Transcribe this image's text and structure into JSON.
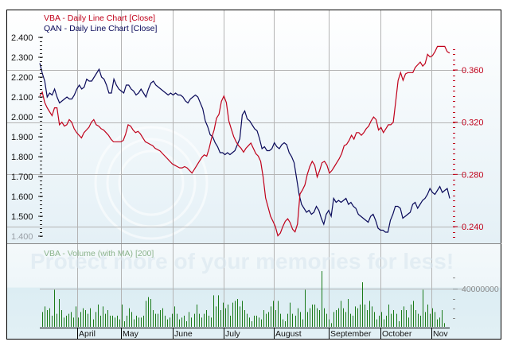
{
  "chart_data": [
    {
      "type": "line",
      "title": "Daily Line Chart [Close]",
      "legend": [
        {
          "name": "VBA - Daily Line Chart [Close]",
          "color": "#c0001a",
          "axis": "right"
        },
        {
          "name": "QAN - Daily Line Chart [Close]",
          "color": "#0a0a5a",
          "axis": "left"
        }
      ],
      "x_ticks": [
        "April",
        "May",
        "June",
        "July",
        "August",
        "September",
        "October",
        "Nov"
      ],
      "left_axis": {
        "ticks": [
          "2.400",
          "2.300",
          "2.200",
          "2.100",
          "2.000",
          "1.900",
          "1.800",
          "1.700",
          "1.600",
          "1.500",
          "1.400"
        ],
        "ylim": [
          1.4,
          2.4
        ]
      },
      "right_axis": {
        "ticks": [
          "0.360",
          "0.320",
          "0.280",
          "0.240"
        ],
        "ylim": [
          0.232,
          0.38
        ]
      },
      "grid": true,
      "series": [
        {
          "name": "QAN",
          "values": [
            2.27,
            2.22,
            2.18,
            2.1,
            2.12,
            2.11,
            2.14,
            2.1,
            2.07,
            2.08,
            2.09,
            2.1,
            2.09,
            2.09,
            2.11,
            2.14,
            2.16,
            2.14,
            2.15,
            2.19,
            2.18,
            2.18,
            2.2,
            2.22,
            2.24,
            2.2,
            2.19,
            2.16,
            2.12,
            2.12,
            2.19,
            2.16,
            2.14,
            2.13,
            2.12,
            2.16,
            2.16,
            2.14,
            2.13,
            2.11,
            2.12,
            2.14,
            2.12,
            2.1,
            2.14,
            2.17,
            2.18,
            2.16,
            2.15,
            2.14,
            2.13,
            2.12,
            2.11,
            2.12,
            2.11,
            2.12,
            2.11,
            2.11,
            2.1,
            2.08,
            2.07,
            2.09,
            2.1,
            2.11,
            2.1,
            2.07,
            2.04,
            1.98,
            1.95,
            1.91,
            1.9,
            1.87,
            1.85,
            1.82,
            1.82,
            1.81,
            1.82,
            1.81,
            1.82,
            1.83,
            1.86,
            1.89,
            2.01,
            2.03,
            1.99,
            1.98,
            1.96,
            1.94,
            1.93,
            1.89,
            1.84,
            1.85,
            1.83,
            1.83,
            1.84,
            1.87,
            1.85,
            1.84,
            1.86,
            1.87,
            1.86,
            1.82,
            1.8,
            1.77,
            1.69,
            1.61,
            1.56,
            1.54,
            1.52,
            1.53,
            1.51,
            1.52,
            1.55,
            1.53,
            1.49,
            1.46,
            1.51,
            1.53,
            1.5,
            1.59,
            1.57,
            1.58,
            1.57,
            1.58,
            1.59,
            1.56,
            1.57,
            1.55,
            1.54,
            1.51,
            1.5,
            1.49,
            1.48,
            1.47,
            1.5,
            1.51,
            1.48,
            1.44,
            1.43,
            1.43,
            1.42,
            1.42,
            1.48,
            1.51,
            1.55,
            1.55,
            1.54,
            1.49,
            1.5,
            1.51,
            1.52,
            1.56,
            1.57,
            1.54,
            1.56,
            1.58,
            1.59,
            1.61,
            1.64,
            1.62,
            1.61,
            1.63,
            1.65,
            1.62,
            1.63,
            1.64,
            1.59
          ]
        },
        {
          "name": "VBA",
          "values": [
            0.34,
            0.343,
            0.335,
            0.331,
            0.328,
            0.325,
            0.331,
            0.331,
            0.318,
            0.32,
            0.317,
            0.318,
            0.322,
            0.32,
            0.315,
            0.312,
            0.31,
            0.308,
            0.312,
            0.314,
            0.316,
            0.32,
            0.322,
            0.318,
            0.317,
            0.315,
            0.314,
            0.312,
            0.31,
            0.307,
            0.305,
            0.305,
            0.305,
            0.305,
            0.306,
            0.311,
            0.318,
            0.317,
            0.314,
            0.312,
            0.313,
            0.311,
            0.308,
            0.305,
            0.304,
            0.303,
            0.302,
            0.3,
            0.299,
            0.298,
            0.296,
            0.294,
            0.292,
            0.29,
            0.288,
            0.287,
            0.286,
            0.285,
            0.285,
            0.286,
            0.285,
            0.283,
            0.281,
            0.284,
            0.287,
            0.29,
            0.293,
            0.295,
            0.294,
            0.3,
            0.308,
            0.314,
            0.323,
            0.326,
            0.336,
            0.34,
            0.335,
            0.321,
            0.315,
            0.309,
            0.305,
            0.302,
            0.3,
            0.297,
            0.3,
            0.302,
            0.304,
            0.3,
            0.296,
            0.294,
            0.29,
            0.278,
            0.262,
            0.255,
            0.248,
            0.244,
            0.24,
            0.233,
            0.235,
            0.24,
            0.244,
            0.246,
            0.243,
            0.238,
            0.236,
            0.242,
            0.265,
            0.268,
            0.272,
            0.28,
            0.286,
            0.29,
            0.287,
            0.278,
            0.283,
            0.289,
            0.29,
            0.287,
            0.281,
            0.283,
            0.286,
            0.289,
            0.292,
            0.296,
            0.302,
            0.303,
            0.306,
            0.31,
            0.307,
            0.312,
            0.312,
            0.31,
            0.312,
            0.315,
            0.317,
            0.321,
            0.324,
            0.322,
            0.314,
            0.316,
            0.312,
            0.315,
            0.318,
            0.318,
            0.32,
            0.336,
            0.352,
            0.358,
            0.352,
            0.357,
            0.358,
            0.358,
            0.358,
            0.362,
            0.364,
            0.366,
            0.363,
            0.365,
            0.372,
            0.37,
            0.371,
            0.374,
            0.378,
            0.378,
            0.378,
            0.378,
            0.374,
            0.373
          ]
        }
      ]
    },
    {
      "type": "bar",
      "title": "VBA - Volume (with MA) [200]",
      "color": "#1a7a1a",
      "x_ticks": [
        "April",
        "May",
        "June",
        "July",
        "August",
        "September",
        "October",
        "Nov"
      ],
      "y_axis": {
        "ticks": [
          "40000000"
        ]
      },
      "values": [
        8,
        11,
        9,
        10,
        6,
        20,
        7,
        15,
        9,
        5,
        6,
        7,
        8,
        5,
        11,
        5,
        8,
        10,
        9,
        7,
        10,
        4,
        8,
        12,
        6,
        11,
        7,
        9,
        6,
        6,
        5,
        6,
        4,
        12,
        3,
        6,
        10,
        8,
        4,
        6,
        5,
        5,
        6,
        14,
        16,
        15,
        9,
        7,
        7,
        9,
        10,
        6,
        4,
        5,
        7,
        11,
        7,
        4,
        5,
        6,
        3,
        8,
        5,
        7,
        12,
        7,
        5,
        7,
        9,
        6,
        5,
        17,
        11,
        17,
        9,
        13,
        10,
        12,
        6,
        13,
        14,
        15,
        11,
        14,
        9,
        7,
        5,
        3,
        6,
        6,
        5,
        4,
        9,
        7,
        8,
        11,
        14,
        9,
        14,
        7,
        4,
        3,
        7,
        13,
        7,
        6,
        10,
        8,
        4,
        20,
        8,
        10,
        12,
        12,
        10,
        9,
        30,
        10,
        7,
        4,
        2,
        8,
        9,
        10,
        14,
        10,
        8,
        15,
        7,
        6,
        11,
        10,
        12,
        24,
        12,
        9,
        14,
        11,
        8,
        4,
        6,
        8,
        4,
        6,
        12,
        7,
        9,
        7,
        3,
        9,
        11,
        9,
        5,
        12,
        14,
        9,
        7,
        6,
        20,
        8,
        12,
        7,
        10,
        8,
        4,
        5,
        9,
        2
      ]
    }
  ],
  "labels": {
    "legend_vba": "VBA - Daily Line Chart [Close]",
    "legend_qan": "QAN - Daily Line Chart [Close]",
    "volume_title": "VBA - Volume (with MA) [200]",
    "volume_tick": "40000000",
    "watermark": "Protect more of your memories for less!"
  },
  "colors": {
    "vba": "#c0001a",
    "qan": "#0a0a5a",
    "volume": "#1a7a1a",
    "grid": "#b4b4b4"
  }
}
